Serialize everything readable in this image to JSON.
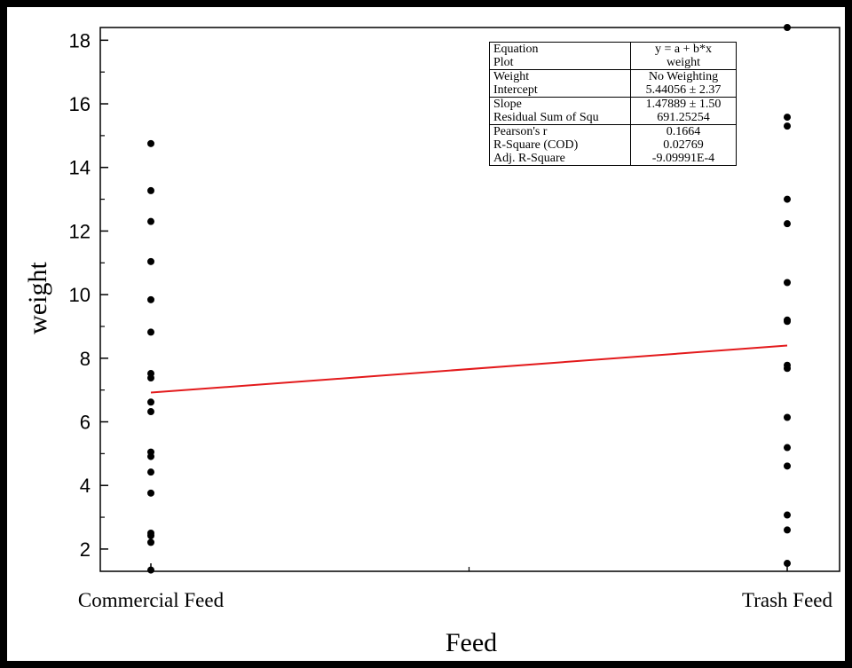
{
  "chart_data": {
    "type": "scatter",
    "xlabel": "Feed",
    "ylabel": "weight",
    "categories": [
      "Commercial Feed",
      "Trash Feed"
    ],
    "x_numeric": [
      0,
      1
    ],
    "ylim": [
      1.3,
      18.4
    ],
    "yticks": [
      "2",
      "4",
      "6",
      "8",
      "10",
      "12",
      "14",
      "16",
      "18"
    ],
    "grid": false,
    "series": [
      {
        "points": [
          {
            "x": "Commercial Feed",
            "y": 14.75
          },
          {
            "x": "Commercial Feed",
            "y": 13.27
          },
          {
            "x": "Commercial Feed",
            "y": 12.3
          },
          {
            "x": "Commercial Feed",
            "y": 11.04
          },
          {
            "x": "Commercial Feed",
            "y": 9.84
          },
          {
            "x": "Commercial Feed",
            "y": 8.82
          },
          {
            "x": "Commercial Feed",
            "y": 7.52
          },
          {
            "x": "Commercial Feed",
            "y": 7.38
          },
          {
            "x": "Commercial Feed",
            "y": 6.62
          },
          {
            "x": "Commercial Feed",
            "y": 6.32
          },
          {
            "x": "Commercial Feed",
            "y": 5.05
          },
          {
            "x": "Commercial Feed",
            "y": 4.91
          },
          {
            "x": "Commercial Feed",
            "y": 4.42
          },
          {
            "x": "Commercial Feed",
            "y": 3.76
          },
          {
            "x": "Commercial Feed",
            "y": 2.5
          },
          {
            "x": "Commercial Feed",
            "y": 2.42
          },
          {
            "x": "Commercial Feed",
            "y": 2.21
          },
          {
            "x": "Commercial Feed",
            "y": 1.34
          },
          {
            "x": "Trash Feed",
            "y": 18.4
          },
          {
            "x": "Trash Feed",
            "y": 15.58
          },
          {
            "x": "Trash Feed",
            "y": 15.3
          },
          {
            "x": "Trash Feed",
            "y": 13.0
          },
          {
            "x": "Trash Feed",
            "y": 12.23
          },
          {
            "x": "Trash Feed",
            "y": 10.38
          },
          {
            "x": "Trash Feed",
            "y": 9.2
          },
          {
            "x": "Trash Feed",
            "y": 9.16
          },
          {
            "x": "Trash Feed",
            "y": 7.78
          },
          {
            "x": "Trash Feed",
            "y": 7.68
          },
          {
            "x": "Trash Feed",
            "y": 6.14
          },
          {
            "x": "Trash Feed",
            "y": 5.19
          },
          {
            "x": "Trash Feed",
            "y": 4.61
          },
          {
            "x": "Trash Feed",
            "y": 3.07
          },
          {
            "x": "Trash Feed",
            "y": 2.6
          },
          {
            "x": "Trash Feed",
            "y": 1.55
          }
        ]
      }
    ],
    "fit_line": {
      "intercept": 5.44056,
      "slope": 1.47889,
      "color": "#e31a1c"
    },
    "stats_table": [
      [
        "Equation",
        "y = a + b*x"
      ],
      [
        "Plot",
        "weight"
      ],
      [
        "Weight",
        "No Weighting"
      ],
      [
        "Intercept",
        "5.44056 ± 2.37"
      ],
      [
        "Slope",
        "1.47889 ± 1.50"
      ],
      [
        "Residual Sum of Squ",
        "691.25254"
      ],
      [
        "Pearson's r",
        "0.1664"
      ],
      [
        "R-Square (COD)",
        "0.02769"
      ],
      [
        "Adj. R-Square",
        "-9.09991E-4"
      ]
    ]
  }
}
